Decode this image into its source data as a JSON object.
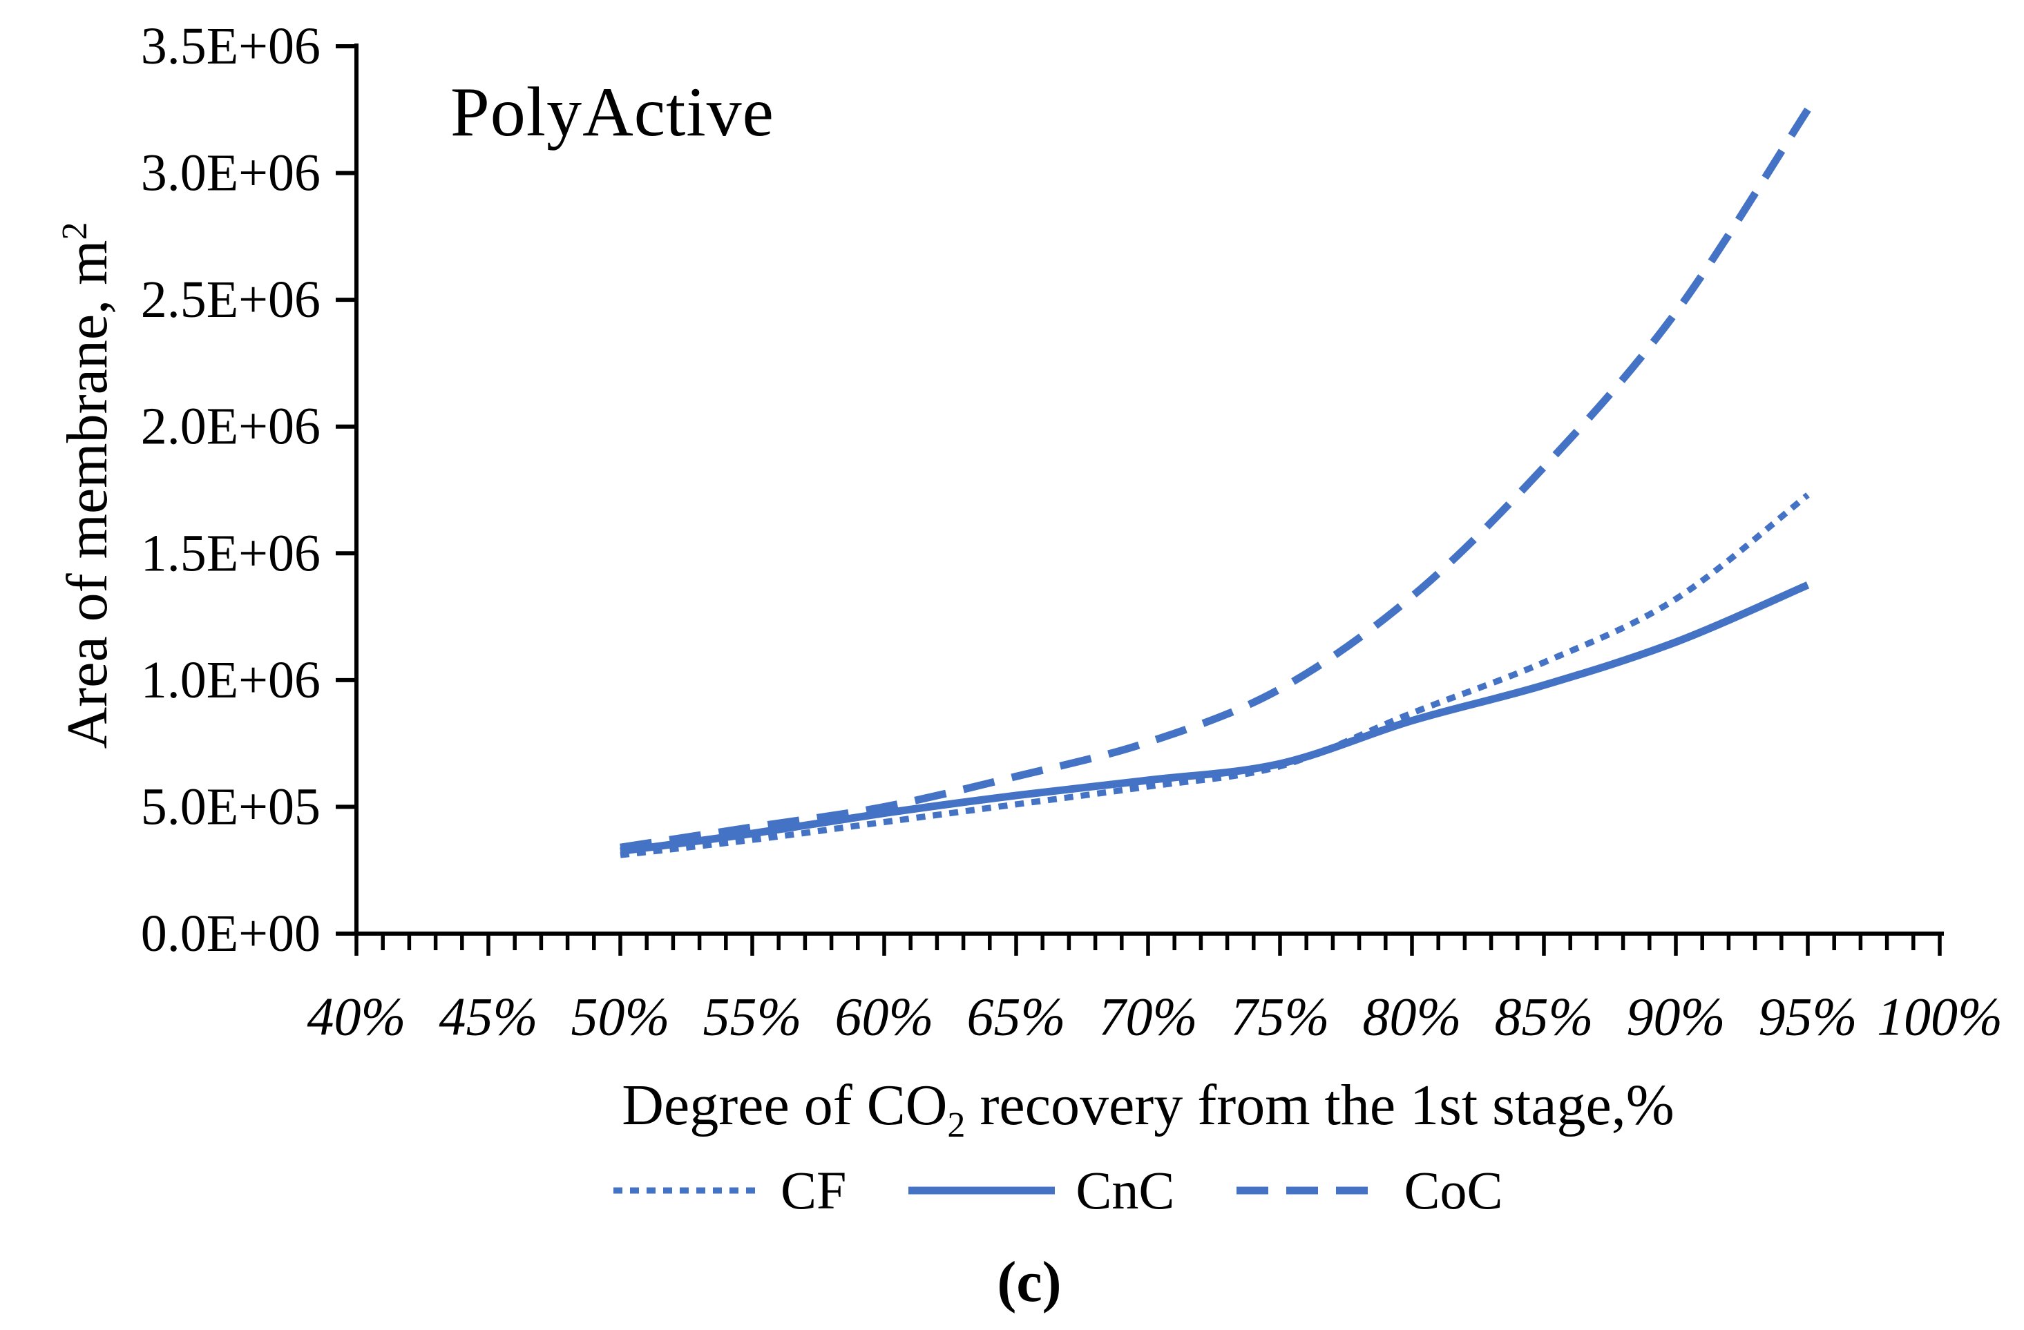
{
  "title": "PolyActive",
  "caption": "(c)",
  "x_axis": {
    "title_pre": "Degree of CO",
    "title_sub": "2",
    "title_post": " recovery from the 1st stage,%"
  },
  "y_axis": {
    "title_text": "Area of membrane, m",
    "title_sup": "2"
  },
  "chart_data": {
    "type": "line",
    "title": "PolyActive",
    "xlabel": "Degree of CO2 recovery from the 1st stage,%",
    "ylabel": "Area of membrane, m2",
    "line_color": "#4472C4",
    "axis_color": "#000000",
    "x_range_percent": [
      40,
      100
    ],
    "x_minor_step_percent": 1,
    "x_major_step_percent": 5,
    "x_tick_labels": [
      "40%",
      "45%",
      "50%",
      "55%",
      "60%",
      "65%",
      "70%",
      "75%",
      "80%",
      "85%",
      "90%",
      "95%",
      "100%"
    ],
    "x_tick_values": [
      40,
      45,
      50,
      55,
      60,
      65,
      70,
      75,
      80,
      85,
      90,
      95,
      100
    ],
    "y_range": [
      0,
      3500000
    ],
    "y_tick_labels": [
      "0.0E+00",
      "5.0E+05",
      "1.0E+06",
      "1.5E+06",
      "2.0E+06",
      "2.5E+06",
      "3.0E+06",
      "3.5E+06"
    ],
    "y_tick_values": [
      0,
      500000,
      1000000,
      1500000,
      2000000,
      2500000,
      3000000,
      3500000
    ],
    "grid": false,
    "legend_position": "bottom",
    "x_percent": [
      50,
      55,
      60,
      65,
      70,
      75,
      80,
      85,
      90,
      95
    ],
    "series": [
      {
        "name": "CF",
        "style": "dotted",
        "values": [
          310000,
          370000,
          440000,
          510000,
          580000,
          660000,
          870000,
          1070000,
          1320000,
          1730000
        ]
      },
      {
        "name": "CnC",
        "style": "solid",
        "values": [
          325000,
          395000,
          475000,
          545000,
          605000,
          670000,
          840000,
          980000,
          1150000,
          1375000
        ]
      },
      {
        "name": "CoC",
        "style": "dashed",
        "values": [
          340000,
          420000,
          500000,
          620000,
          755000,
          965000,
          1330000,
          1840000,
          2450000,
          3250000
        ]
      }
    ]
  }
}
